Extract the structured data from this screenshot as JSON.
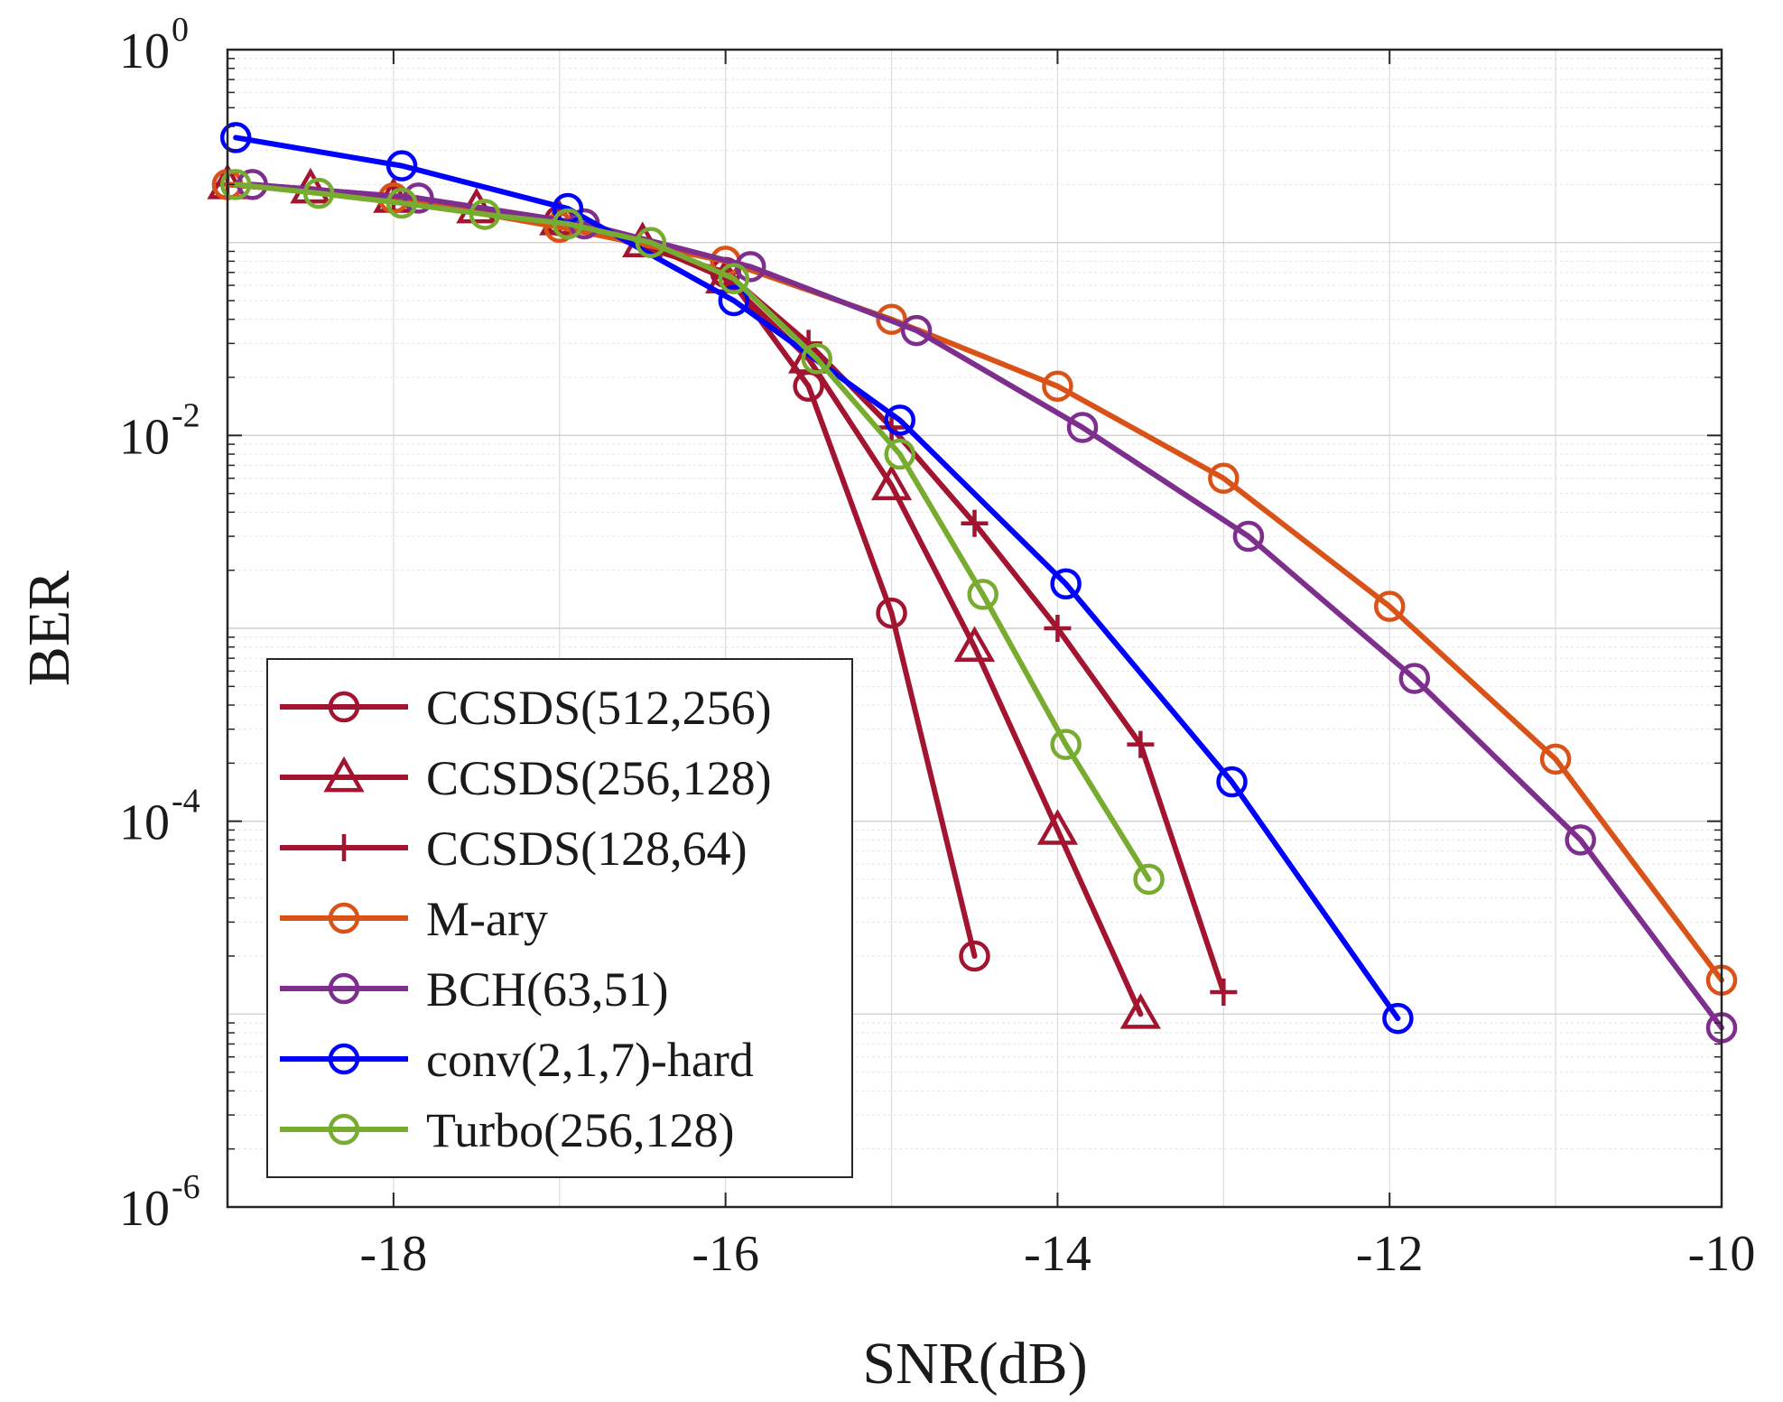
{
  "chart_data": {
    "type": "line",
    "xlabel": "SNR(dB)",
    "ylabel": "BER",
    "xscale": "linear",
    "yscale": "log",
    "xlim": [
      -19,
      -10
    ],
    "ylim": [
      1e-06,
      1
    ],
    "xticks": [
      -18,
      -16,
      -14,
      -12,
      -10
    ],
    "xtick_labels": [
      "-18",
      "-16",
      "-14",
      "-12",
      "-10"
    ],
    "yticks": [
      1e-06,
      0.0001,
      0.01,
      1
    ],
    "ytick_labels": [
      {
        "base": "10",
        "exp": "-6"
      },
      {
        "base": "10",
        "exp": "-4"
      },
      {
        "base": "10",
        "exp": "-2"
      },
      {
        "base": "10",
        "exp": "0"
      }
    ],
    "grid": true,
    "legend_position": "bottom-left",
    "series": [
      {
        "name": "CCSDS(512,256)",
        "color": "#a2142f",
        "marker": "circle",
        "x": [
          -19,
          -18,
          -17,
          -16,
          -15.5,
          -15,
          -14.5
        ],
        "y": [
          0.2,
          0.17,
          0.13,
          0.07,
          0.018,
          0.0012,
          2e-05
        ]
      },
      {
        "name": "CCSDS(256,128)",
        "color": "#a2142f",
        "marker": "triangle",
        "x": [
          -19,
          -18.5,
          -18,
          -17.5,
          -17,
          -16.5,
          -16,
          -15.5,
          -15,
          -14.5,
          -14,
          -13.5
        ],
        "y": [
          0.2,
          0.19,
          0.17,
          0.15,
          0.13,
          0.1,
          0.065,
          0.025,
          0.0055,
          0.0008,
          9e-05,
          1e-05
        ]
      },
      {
        "name": "CCSDS(128,64)",
        "color": "#a2142f",
        "marker": "plus",
        "x": [
          -19,
          -18,
          -17,
          -16,
          -15.5,
          -15,
          -14.5,
          -14,
          -13.5,
          -13
        ],
        "y": [
          0.2,
          0.17,
          0.13,
          0.07,
          0.03,
          0.011,
          0.0035,
          0.001,
          0.00025,
          1.3e-05
        ]
      },
      {
        "name": "M-ary",
        "color": "#d95319",
        "marker": "circle",
        "x": [
          -19,
          -18,
          -17,
          -16,
          -15,
          -14,
          -13,
          -12,
          -11,
          -10
        ],
        "y": [
          0.2,
          0.17,
          0.12,
          0.08,
          0.04,
          0.018,
          0.006,
          0.0013,
          0.00021,
          1.5e-05
        ]
      },
      {
        "name": "BCH(63,51)",
        "color": "#7e2f8e",
        "marker": "circle",
        "x": [
          -18.85,
          -17.85,
          -16.85,
          -15.85,
          -14.85,
          -13.85,
          -12.85,
          -11.85,
          -10.85,
          -10
        ],
        "y": [
          0.2,
          0.17,
          0.125,
          0.075,
          0.035,
          0.011,
          0.003,
          0.00055,
          8e-05,
          8.5e-06
        ]
      },
      {
        "name": "conv(2,1,7)-hard",
        "color": "#0000ff",
        "marker": "circle",
        "x": [
          -18.95,
          -17.95,
          -16.95,
          -15.95,
          -14.95,
          -13.95,
          -12.95,
          -11.95
        ],
        "y": [
          0.35,
          0.25,
          0.15,
          0.05,
          0.012,
          0.0017,
          0.00016,
          9.5e-06
        ]
      },
      {
        "name": "Turbo(256,128)",
        "color": "#77ac30",
        "marker": "circle",
        "x": [
          -18.95,
          -18.45,
          -17.95,
          -17.45,
          -16.95,
          -16.45,
          -15.95,
          -15.45,
          -14.95,
          -14.45,
          -13.95,
          -13.45
        ],
        "y": [
          0.2,
          0.18,
          0.16,
          0.14,
          0.125,
          0.1,
          0.065,
          0.025,
          0.008,
          0.0015,
          0.00025,
          5e-05
        ]
      }
    ]
  }
}
